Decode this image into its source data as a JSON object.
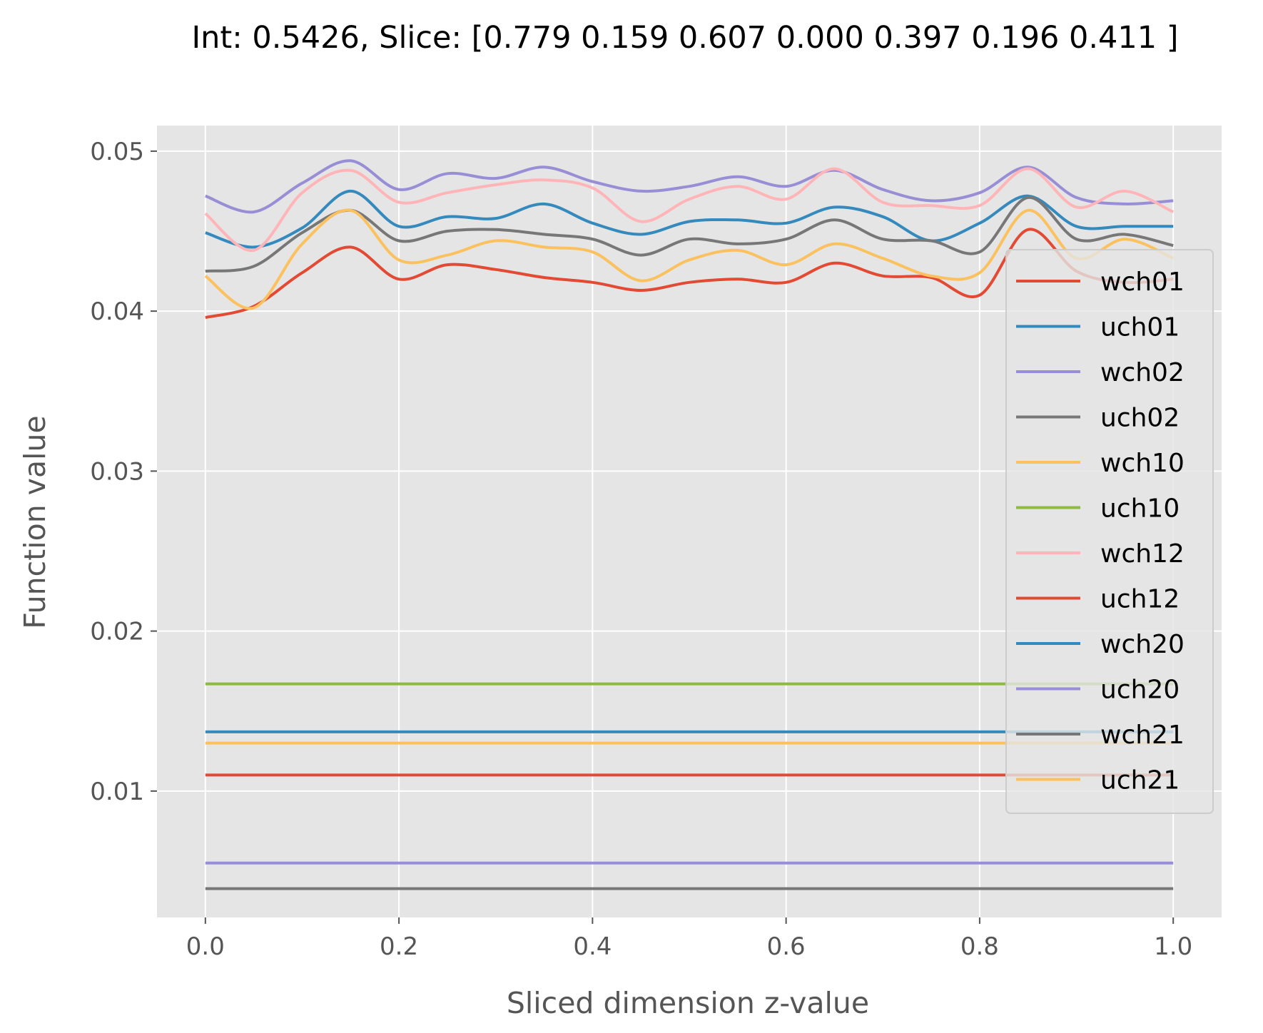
{
  "chart_data": {
    "type": "line",
    "title": "Int: 0.5426, Slice: [0.779 0.159 0.607 0.000 0.397 0.196 0.411 ]",
    "xlabel": "Sliced dimension z-value",
    "ylabel": "Function value",
    "xlim": [
      -0.05,
      1.05
    ],
    "ylim": [
      0.0021,
      0.0516
    ],
    "xticks": [
      0.0,
      0.2,
      0.4,
      0.6,
      0.8,
      1.0
    ],
    "xtick_labels": [
      "0.0",
      "0.2",
      "0.4",
      "0.6",
      "0.8",
      "1.0"
    ],
    "yticks": [
      0.01,
      0.02,
      0.03,
      0.04,
      0.05
    ],
    "ytick_labels": [
      "0.01",
      "0.02",
      "0.03",
      "0.04",
      "0.05"
    ],
    "grid": true,
    "legend_position": "right",
    "x": [
      0.0,
      0.05,
      0.1,
      0.15,
      0.2,
      0.25,
      0.3,
      0.35,
      0.4,
      0.45,
      0.5,
      0.55,
      0.6,
      0.65,
      0.7,
      0.75,
      0.8,
      0.85,
      0.9,
      0.95,
      1.0
    ],
    "series": [
      {
        "name": "wch01",
        "color": "#E24A33",
        "values": [
          0.0396,
          0.0403,
          0.0424,
          0.044,
          0.042,
          0.0429,
          0.0426,
          0.0421,
          0.0418,
          0.0413,
          0.0418,
          0.042,
          0.0418,
          0.043,
          0.0422,
          0.0421,
          0.041,
          0.0451,
          0.0425,
          0.0418,
          0.042
        ]
      },
      {
        "name": "uch01",
        "color": "#348ABD",
        "values": [
          0.0449,
          0.044,
          0.0452,
          0.0475,
          0.0453,
          0.0459,
          0.0458,
          0.0467,
          0.0455,
          0.0448,
          0.0456,
          0.0457,
          0.0455,
          0.0465,
          0.0459,
          0.0444,
          0.0455,
          0.0472,
          0.0453,
          0.0453,
          0.0453
        ]
      },
      {
        "name": "wch02",
        "color": "#988ED5",
        "values": [
          0.0472,
          0.0462,
          0.048,
          0.0494,
          0.0476,
          0.0486,
          0.0483,
          0.049,
          0.0481,
          0.0475,
          0.0478,
          0.0484,
          0.0478,
          0.0488,
          0.0476,
          0.0469,
          0.0474,
          0.049,
          0.0471,
          0.0467,
          0.0469
        ]
      },
      {
        "name": "uch02",
        "color": "#777777",
        "values": [
          0.0425,
          0.0428,
          0.0449,
          0.0463,
          0.0444,
          0.045,
          0.0451,
          0.0448,
          0.0445,
          0.0435,
          0.0445,
          0.0442,
          0.0445,
          0.0457,
          0.0445,
          0.0444,
          0.0437,
          0.0471,
          0.0445,
          0.0448,
          0.0441
        ]
      },
      {
        "name": "wch10",
        "color": "#FBC15E",
        "values": [
          0.0422,
          0.0402,
          0.0442,
          0.0463,
          0.0432,
          0.0435,
          0.0444,
          0.044,
          0.0437,
          0.0419,
          0.0432,
          0.0438,
          0.0429,
          0.0442,
          0.0433,
          0.0422,
          0.0424,
          0.0463,
          0.0433,
          0.0445,
          0.0433
        ]
      },
      {
        "name": "uch10",
        "color": "#8EBA42",
        "values": [
          0.0167,
          0.0167,
          0.0167,
          0.0167,
          0.0167,
          0.0167,
          0.0167,
          0.0167,
          0.0167,
          0.0167,
          0.0167,
          0.0167,
          0.0167,
          0.0167,
          0.0167,
          0.0167,
          0.0167,
          0.0167,
          0.0167,
          0.0167,
          0.0167
        ]
      },
      {
        "name": "wch12",
        "color": "#FFB5B8",
        "values": [
          0.0461,
          0.0438,
          0.0474,
          0.0488,
          0.0468,
          0.0474,
          0.0479,
          0.0482,
          0.0477,
          0.0456,
          0.047,
          0.0478,
          0.047,
          0.0489,
          0.0468,
          0.0466,
          0.0466,
          0.0489,
          0.0465,
          0.0475,
          0.0462
        ]
      },
      {
        "name": "uch12",
        "color": "#E24A33",
        "values": [
          0.011,
          0.011,
          0.011,
          0.011,
          0.011,
          0.011,
          0.011,
          0.011,
          0.011,
          0.011,
          0.011,
          0.011,
          0.011,
          0.011,
          0.011,
          0.011,
          0.011,
          0.011,
          0.011,
          0.011,
          0.011
        ]
      },
      {
        "name": "wch20",
        "color": "#348ABD",
        "values": [
          0.0137,
          0.0137,
          0.0137,
          0.0137,
          0.0137,
          0.0137,
          0.0137,
          0.0137,
          0.0137,
          0.0137,
          0.0137,
          0.0137,
          0.0137,
          0.0137,
          0.0137,
          0.0137,
          0.0137,
          0.0137,
          0.0137,
          0.0137,
          0.0137
        ]
      },
      {
        "name": "uch20",
        "color": "#988ED5",
        "values": [
          0.0055,
          0.0055,
          0.0055,
          0.0055,
          0.0055,
          0.0055,
          0.0055,
          0.0055,
          0.0055,
          0.0055,
          0.0055,
          0.0055,
          0.0055,
          0.0055,
          0.0055,
          0.0055,
          0.0055,
          0.0055,
          0.0055,
          0.0055,
          0.0055
        ]
      },
      {
        "name": "wch21",
        "color": "#777777",
        "values": [
          0.0039,
          0.0039,
          0.0039,
          0.0039,
          0.0039,
          0.0039,
          0.0039,
          0.0039,
          0.0039,
          0.0039,
          0.0039,
          0.0039,
          0.0039,
          0.0039,
          0.0039,
          0.0039,
          0.0039,
          0.0039,
          0.0039,
          0.0039,
          0.0039
        ]
      },
      {
        "name": "uch21",
        "color": "#FBC15E",
        "values": [
          0.013,
          0.013,
          0.013,
          0.013,
          0.013,
          0.013,
          0.013,
          0.013,
          0.013,
          0.013,
          0.013,
          0.013,
          0.013,
          0.013,
          0.013,
          0.013,
          0.013,
          0.013,
          0.013,
          0.013,
          0.013
        ]
      }
    ]
  }
}
